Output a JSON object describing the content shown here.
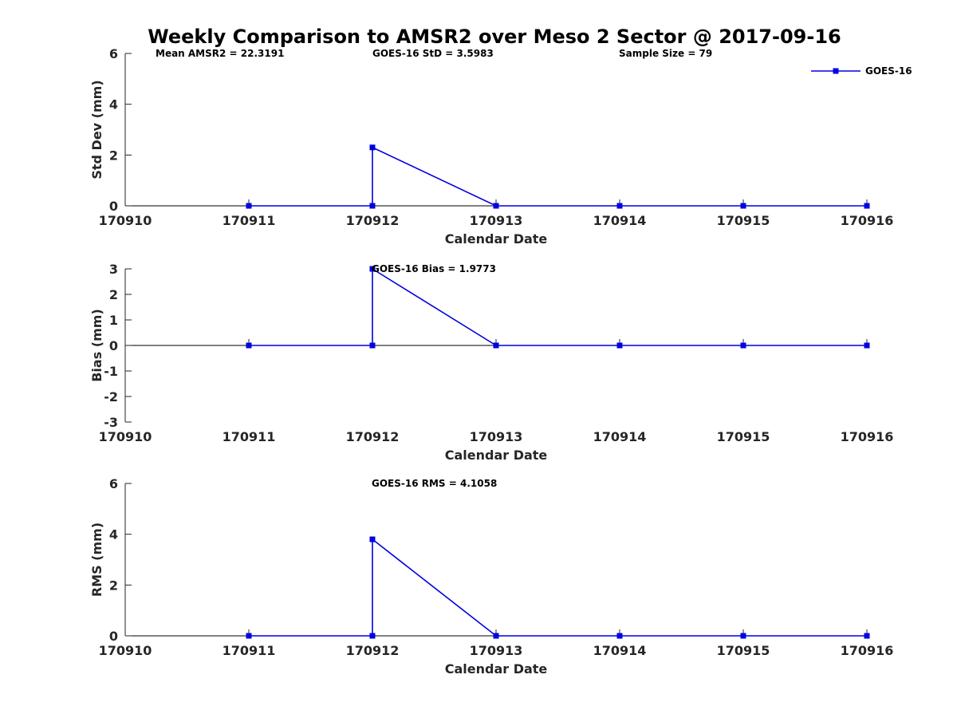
{
  "title": "Weekly Comparison to AMSR2 over Meso 2 Sector @ 2017-09-16",
  "legend": {
    "label": "GOES-16",
    "placement": "top-right"
  },
  "annotations": {
    "mean_amsr2": "Mean AMSR2 = 22.3191",
    "std": "GOES-16 StD = 3.5983",
    "sample_size": "Sample Size = 79",
    "bias": "GOES-16 Bias  = 1.9773",
    "rms": "GOES-16 RMS = 4.1058"
  },
  "colors": {
    "series": "#0000e0",
    "axis": "#262626"
  },
  "chart_data": [
    {
      "type": "line",
      "title": "Weekly Comparison to AMSR2 over Meso 2 Sector @ 2017-09-16",
      "xlabel": "Calendar Date",
      "ylabel": "Std Dev (mm)",
      "xlim": [
        170910,
        170916
      ],
      "ylim": [
        0,
        6
      ],
      "xticks": [
        "170910",
        "170911",
        "170912",
        "170913",
        "170914",
        "170915",
        "170916"
      ],
      "yticks": [
        "0",
        "2",
        "4",
        "6"
      ],
      "grid": false,
      "series": [
        {
          "name": "GOES-16",
          "x": [
            170911,
            170912,
            170912,
            170913,
            170914,
            170915,
            170916
          ],
          "y": [
            0,
            0,
            2.3,
            0,
            0,
            0,
            0
          ]
        }
      ]
    },
    {
      "type": "line",
      "xlabel": "Calendar Date",
      "ylabel": "Bias (mm)",
      "xlim": [
        170910,
        170916
      ],
      "ylim": [
        -3,
        3
      ],
      "xticks": [
        "170910",
        "170911",
        "170912",
        "170913",
        "170914",
        "170915",
        "170916"
      ],
      "yticks": [
        "-3",
        "-2",
        "-1",
        "0",
        "1",
        "2",
        "3"
      ],
      "grid": false,
      "series": [
        {
          "name": "GOES-16",
          "x": [
            170911,
            170912,
            170912,
            170913,
            170914,
            170915,
            170916
          ],
          "y": [
            0,
            0,
            3.0,
            0,
            0,
            0,
            0
          ]
        }
      ]
    },
    {
      "type": "line",
      "xlabel": "Calendar Date",
      "ylabel": "RMS (mm)",
      "xlim": [
        170910,
        170916
      ],
      "ylim": [
        0,
        6
      ],
      "xticks": [
        "170910",
        "170911",
        "170912",
        "170913",
        "170914",
        "170915",
        "170916"
      ],
      "yticks": [
        "0",
        "2",
        "4",
        "6"
      ],
      "grid": false,
      "series": [
        {
          "name": "GOES-16",
          "x": [
            170911,
            170912,
            170912,
            170913,
            170914,
            170915,
            170916
          ],
          "y": [
            0,
            0,
            3.8,
            0,
            0,
            0,
            0
          ]
        }
      ]
    }
  ]
}
